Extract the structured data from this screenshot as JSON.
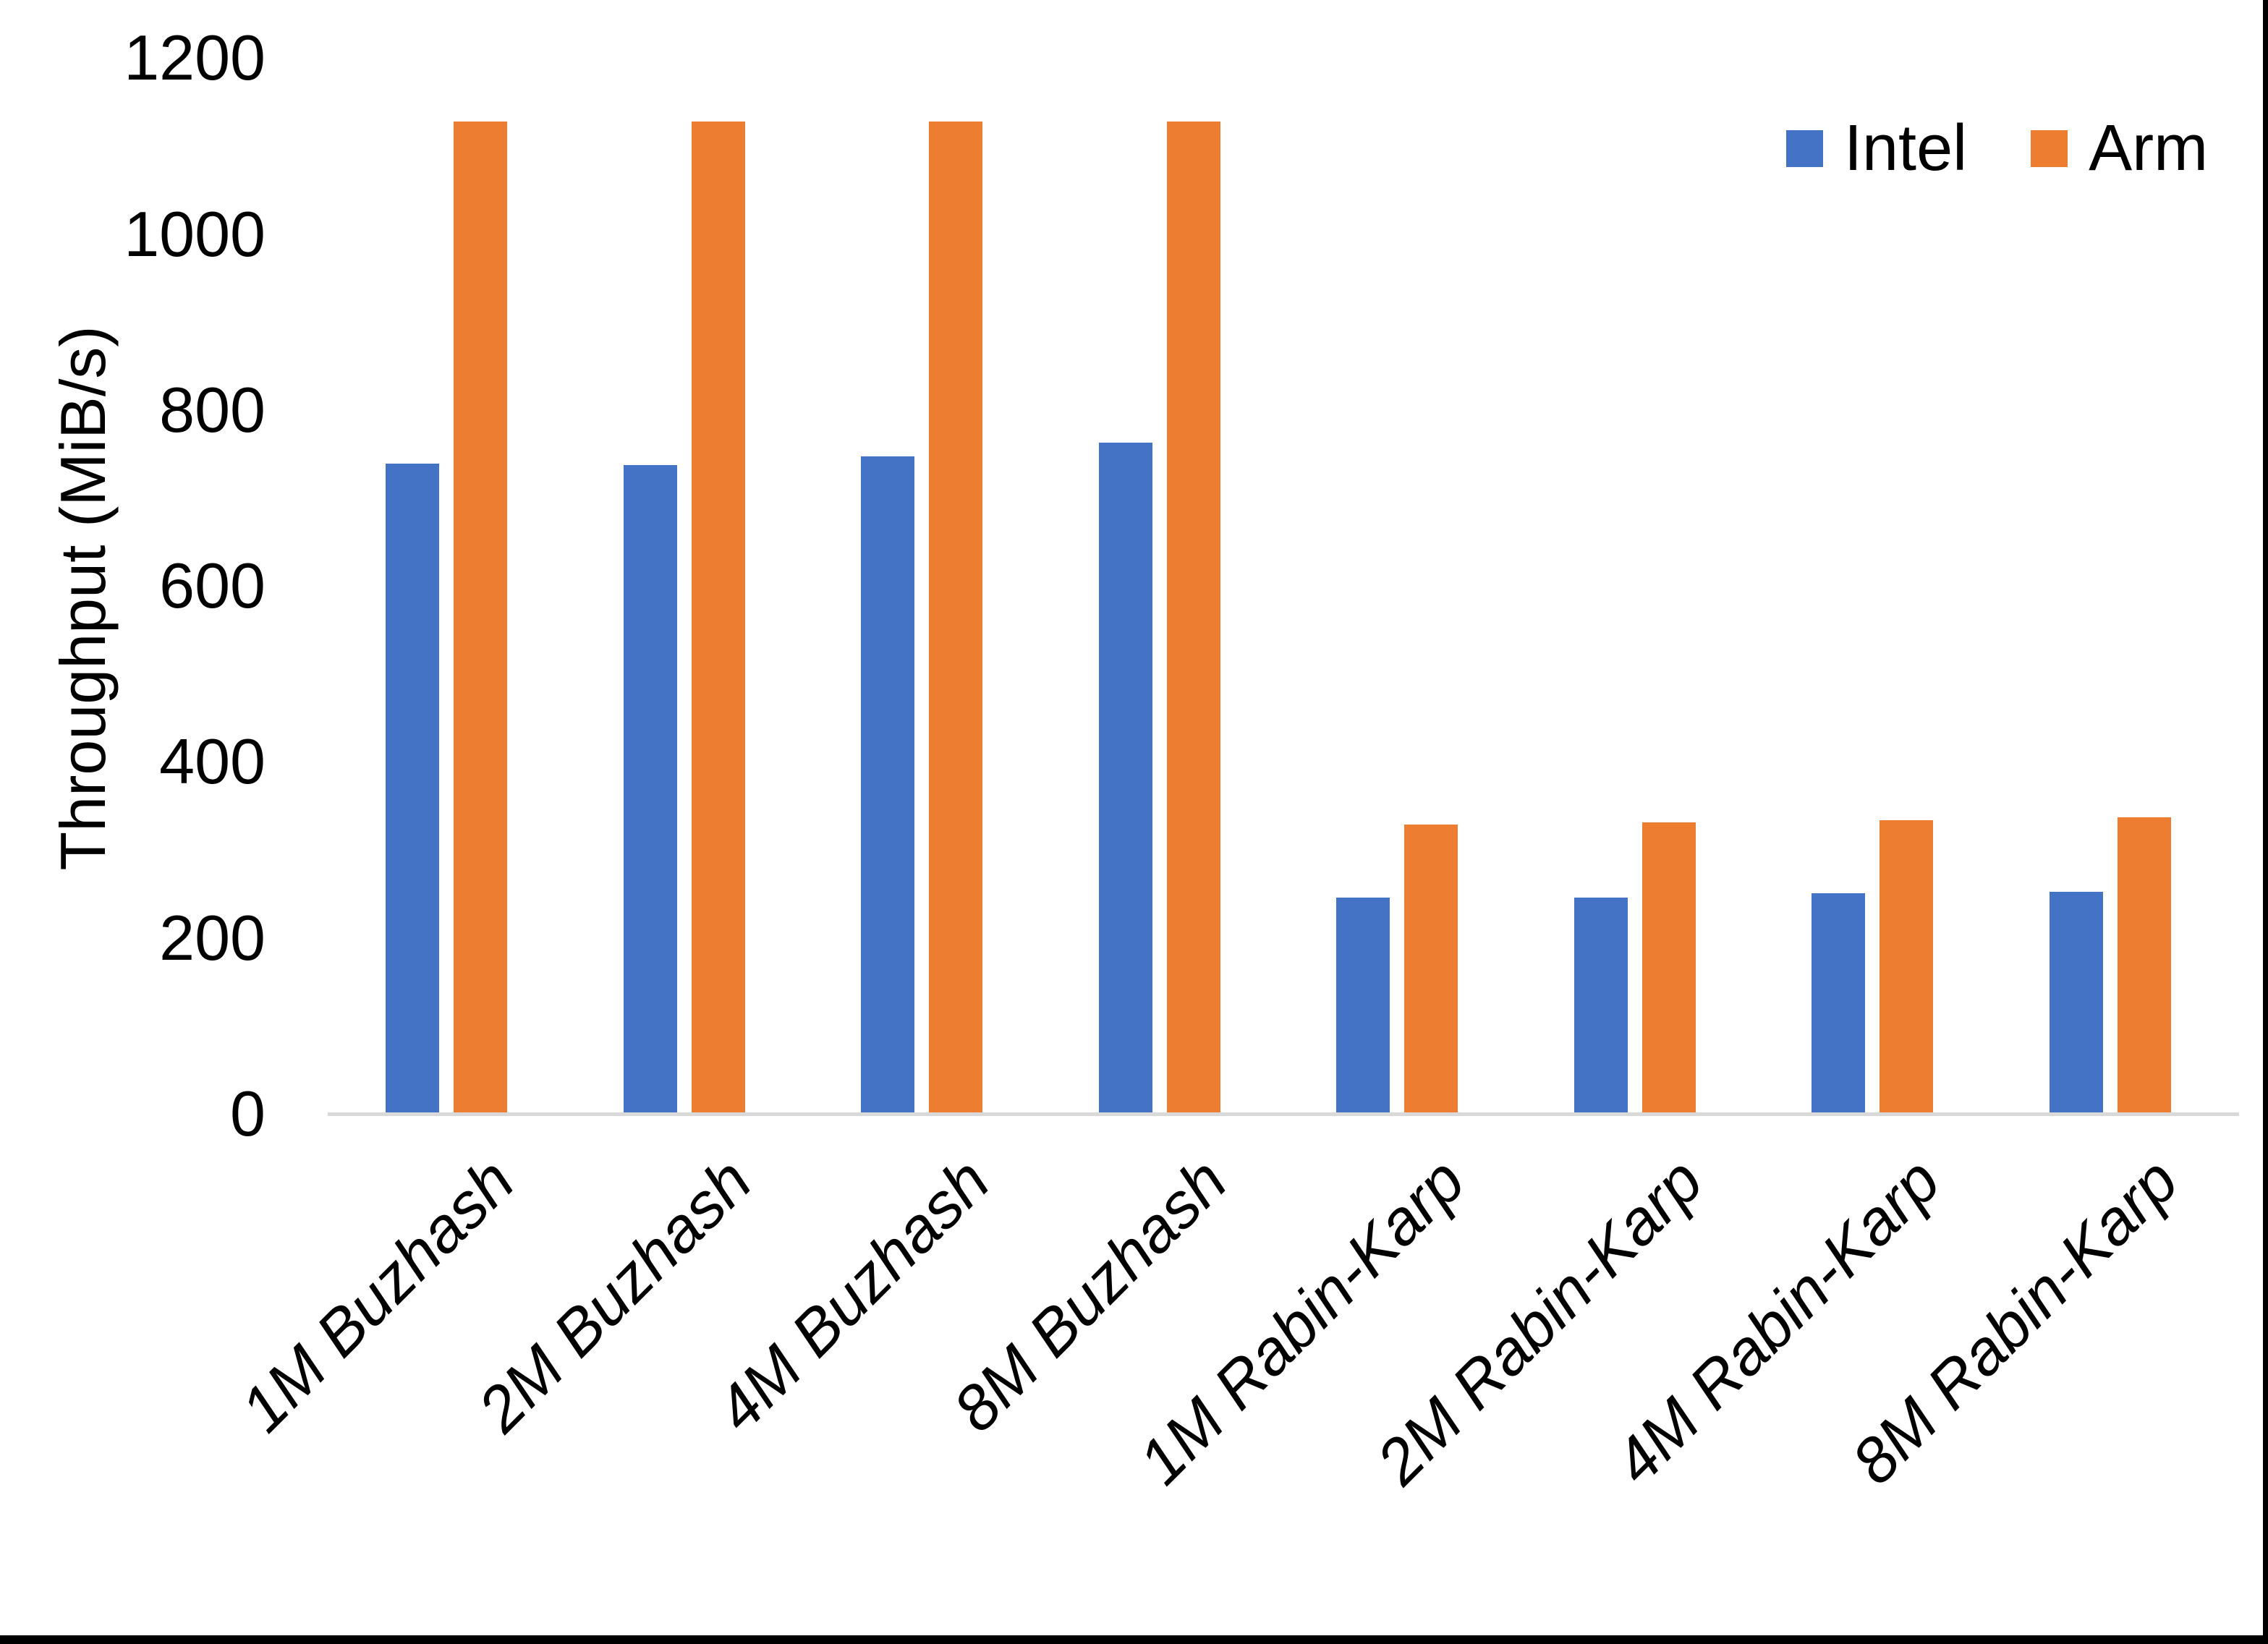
{
  "chart_data": {
    "type": "bar",
    "title": "",
    "xlabel": "",
    "ylabel": "Throughput (MiB/s)",
    "categories": [
      "1M Buzhash",
      "2M Buzhash",
      "4M Buzhash",
      "8M Buzhash",
      "1M Rabin-Karp",
      "2M Rabin-Karp",
      "4M Rabin-Karp",
      "8M Rabin-Karp"
    ],
    "series": [
      {
        "name": "Intel",
        "color": "#4472C4",
        "values": [
          739,
          737,
          747,
          763,
          246,
          246,
          251,
          252
        ]
      },
      {
        "name": "Arm",
        "color": "#ED7D31",
        "values": [
          1128,
          1128,
          1128,
          1128,
          329,
          331,
          334,
          337
        ]
      }
    ],
    "ylim": [
      0,
      1200
    ],
    "yticks": [
      0,
      200,
      400,
      600,
      800,
      1000,
      1200
    ],
    "grid": false,
    "legend_position": "top-right",
    "axis_line_color": "#d9d9d9",
    "text_color": "#000000"
  }
}
